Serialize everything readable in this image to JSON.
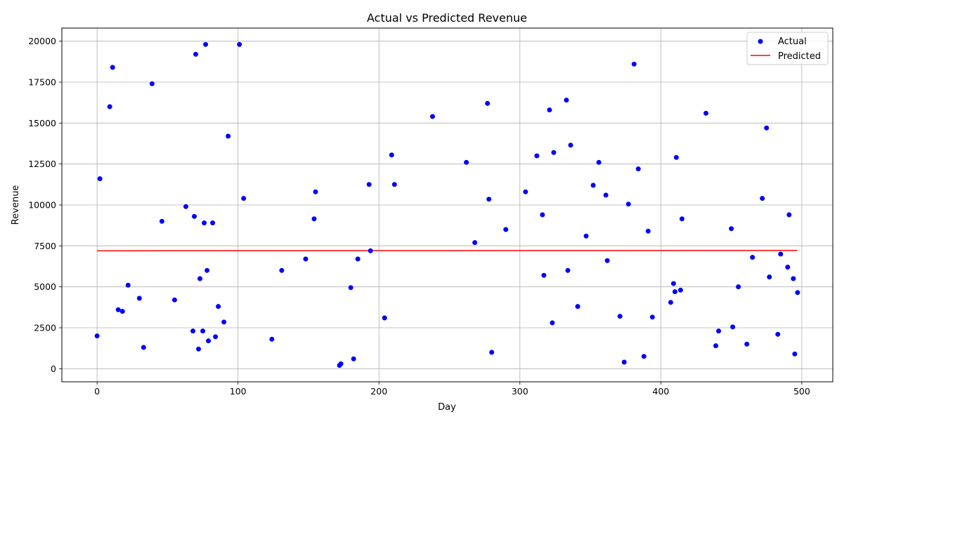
{
  "chart_data": {
    "type": "scatter",
    "title": "Actual vs Predicted Revenue",
    "xlabel": "Day",
    "ylabel": "Revenue",
    "xlim": [
      -25,
      522
    ],
    "ylim": [
      -800,
      20800
    ],
    "xticks": [
      0,
      100,
      200,
      300,
      400,
      500
    ],
    "yticks": [
      0,
      2500,
      5000,
      7500,
      10000,
      12500,
      15000,
      17500,
      20000
    ],
    "grid": true,
    "legend_position": "top-right",
    "series": [
      {
        "name": "Actual",
        "kind": "scatter",
        "color": "#0000ff",
        "points": [
          [
            0,
            2000
          ],
          [
            2,
            11600
          ],
          [
            9,
            16000
          ],
          [
            11,
            18400
          ],
          [
            15,
            3600
          ],
          [
            18,
            3500
          ],
          [
            22,
            5100
          ],
          [
            30,
            4300
          ],
          [
            33,
            1300
          ],
          [
            39,
            17400
          ],
          [
            46,
            9000
          ],
          [
            55,
            4200
          ],
          [
            63,
            9900
          ],
          [
            68,
            2300
          ],
          [
            69,
            9300
          ],
          [
            70,
            19200
          ],
          [
            72,
            1200
          ],
          [
            73,
            5500
          ],
          [
            75,
            2300
          ],
          [
            76,
            8900
          ],
          [
            77,
            19800
          ],
          [
            78,
            6000
          ],
          [
            79,
            1700
          ],
          [
            82,
            8900
          ],
          [
            84,
            1950
          ],
          [
            86,
            3800
          ],
          [
            90,
            2850
          ],
          [
            93,
            14200
          ],
          [
            101,
            19800
          ],
          [
            104,
            10400
          ],
          [
            124,
            1800
          ],
          [
            131,
            6000
          ],
          [
            148,
            6700
          ],
          [
            154,
            9150
          ],
          [
            155,
            10800
          ],
          [
            172,
            200
          ],
          [
            173,
            300
          ],
          [
            180,
            4950
          ],
          [
            182,
            600
          ],
          [
            185,
            6700
          ],
          [
            193,
            11250
          ],
          [
            194,
            7200
          ],
          [
            204,
            3100
          ],
          [
            209,
            13050
          ],
          [
            211,
            11250
          ],
          [
            238,
            15400
          ],
          [
            262,
            12600
          ],
          [
            268,
            7700
          ],
          [
            277,
            16200
          ],
          [
            278,
            10350
          ],
          [
            280,
            1000
          ],
          [
            290,
            8500
          ],
          [
            304,
            10800
          ],
          [
            312,
            13000
          ],
          [
            316,
            9400
          ],
          [
            317,
            5700
          ],
          [
            321,
            15800
          ],
          [
            323,
            2800
          ],
          [
            324,
            13200
          ],
          [
            333,
            16400
          ],
          [
            334,
            6000
          ],
          [
            336,
            13650
          ],
          [
            341,
            3800
          ],
          [
            347,
            8100
          ],
          [
            352,
            11200
          ],
          [
            356,
            12600
          ],
          [
            361,
            10600
          ],
          [
            362,
            6600
          ],
          [
            371,
            3200
          ],
          [
            374,
            400
          ],
          [
            377,
            10050
          ],
          [
            381,
            18600
          ],
          [
            384,
            12200
          ],
          [
            388,
            750
          ],
          [
            391,
            8400
          ],
          [
            394,
            3150
          ],
          [
            407,
            4050
          ],
          [
            409,
            5200
          ],
          [
            410,
            4700
          ],
          [
            411,
            12900
          ],
          [
            414,
            4800
          ],
          [
            415,
            9150
          ],
          [
            432,
            15600
          ],
          [
            439,
            1400
          ],
          [
            441,
            2300
          ],
          [
            450,
            8550
          ],
          [
            451,
            2550
          ],
          [
            455,
            5000
          ],
          [
            461,
            1500
          ],
          [
            465,
            6800
          ],
          [
            472,
            10400
          ],
          [
            475,
            14700
          ],
          [
            477,
            5600
          ],
          [
            483,
            2100
          ],
          [
            485,
            7000
          ],
          [
            490,
            6200
          ],
          [
            491,
            9400
          ],
          [
            494,
            5500
          ],
          [
            495,
            900
          ],
          [
            497,
            4650
          ]
        ]
      },
      {
        "name": "Predicted",
        "kind": "line",
        "color": "#ff0000",
        "points": [
          [
            0,
            7200
          ],
          [
            497,
            7220
          ]
        ]
      }
    ]
  }
}
